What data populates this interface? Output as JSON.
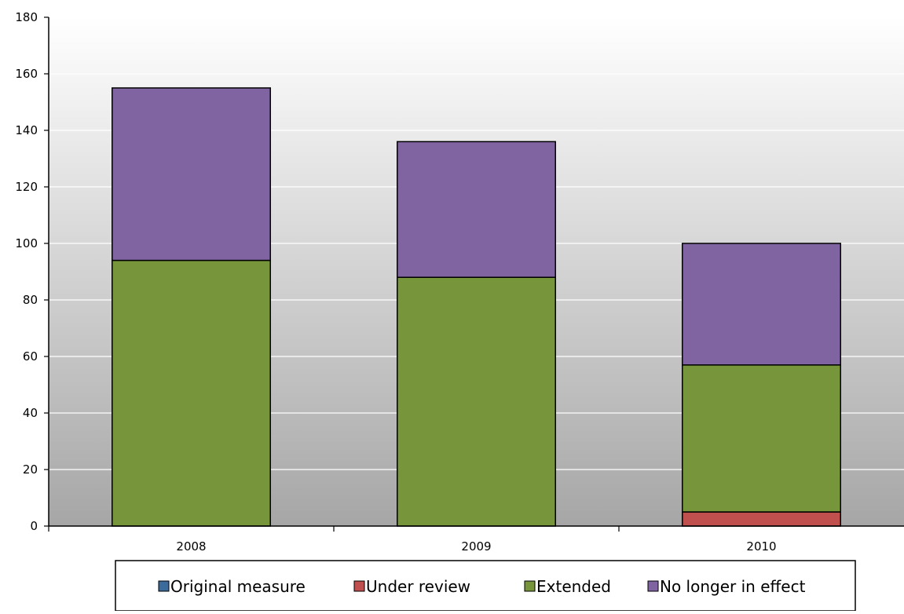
{
  "chart_data": {
    "type": "bar",
    "stacked": true,
    "title": "",
    "xlabel": "",
    "ylabel": "",
    "categories": [
      "2008",
      "2009",
      "2010"
    ],
    "series": [
      {
        "name": "Original measure",
        "color": "#3b6a9c",
        "values": [
          0,
          0,
          0
        ]
      },
      {
        "name": "Under review",
        "color": "#c0504d",
        "values": [
          0,
          0,
          5
        ]
      },
      {
        "name": "Extended",
        "color": "#77963b",
        "values": [
          94,
          88,
          52
        ]
      },
      {
        "name": "No longer in effect",
        "color": "#8064a2",
        "values": [
          61,
          48,
          43
        ]
      }
    ],
    "ylim": [
      0,
      180
    ],
    "yticks": [
      "0",
      "20",
      "40",
      "60",
      "80",
      "100",
      "120",
      "140",
      "160",
      "180"
    ],
    "grid": true,
    "legend_position": "bottom"
  }
}
